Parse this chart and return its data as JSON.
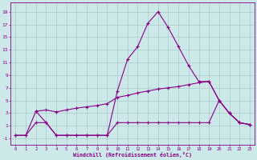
{
  "xlabel": "Windchill (Refroidissement éolien,°C)",
  "bg_color": "#cce8e8",
  "grid_color": "#aacccc",
  "line_color": "#880088",
  "x_ticks": [
    0,
    1,
    2,
    3,
    4,
    5,
    6,
    7,
    8,
    9,
    10,
    11,
    12,
    13,
    14,
    15,
    16,
    17,
    18,
    19,
    20,
    21,
    22,
    23
  ],
  "y_ticks": [
    -1,
    1,
    3,
    5,
    7,
    9,
    11,
    13,
    15,
    17,
    19
  ],
  "ylim": [
    -2.0,
    20.5
  ],
  "xlim": [
    -0.5,
    23.5
  ],
  "line1_x": [
    0,
    1,
    2,
    3,
    4,
    5,
    6,
    7,
    8,
    9,
    10,
    11,
    12,
    13,
    14,
    15,
    16,
    17,
    18,
    19,
    20,
    21,
    22,
    23
  ],
  "line1_y": [
    -0.5,
    -0.5,
    3.3,
    1.5,
    -0.5,
    -0.5,
    -0.5,
    -0.5,
    -0.5,
    -0.5,
    6.5,
    11.5,
    13.5,
    17.2,
    19.0,
    16.5,
    13.5,
    10.5,
    8.0,
    8.0,
    5.0,
    3.0,
    1.5,
    1.2
  ],
  "line2_x": [
    2,
    3,
    4,
    5,
    6,
    7,
    8,
    9,
    10,
    11,
    12,
    13,
    14,
    15,
    16,
    17,
    18,
    19,
    20,
    21,
    22,
    23
  ],
  "line2_y": [
    3.3,
    3.5,
    3.2,
    3.5,
    3.8,
    4.0,
    4.2,
    4.5,
    5.5,
    5.8,
    6.2,
    6.5,
    6.8,
    7.0,
    7.2,
    7.5,
    7.8,
    8.0,
    5.0,
    3.0,
    1.5,
    1.2
  ],
  "line3_x": [
    0,
    1,
    2,
    3,
    4,
    5,
    6,
    7,
    8,
    9,
    10,
    11,
    12,
    13,
    14,
    15,
    16,
    17,
    18,
    19,
    20,
    21,
    22,
    23
  ],
  "line3_y": [
    -0.5,
    -0.5,
    1.5,
    1.5,
    -0.5,
    -0.5,
    -0.5,
    -0.5,
    -0.5,
    -0.5,
    1.5,
    1.5,
    1.5,
    1.5,
    1.5,
    1.5,
    1.5,
    1.5,
    1.5,
    1.5,
    5.0,
    3.0,
    1.5,
    1.2
  ]
}
